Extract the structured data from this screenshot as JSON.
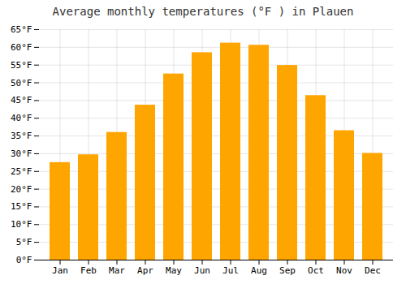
{
  "chart_data": {
    "type": "bar",
    "title": "Average monthly temperatures (°F ) in Plauen",
    "categories": [
      "Jan",
      "Feb",
      "Mar",
      "Apr",
      "May",
      "Jun",
      "Jul",
      "Aug",
      "Sep",
      "Oct",
      "Nov",
      "Dec"
    ],
    "values": [
      27.5,
      29.7,
      36.0,
      43.7,
      52.5,
      58.5,
      61.2,
      60.6,
      54.9,
      46.4,
      36.5,
      30.1
    ],
    "color": "#FFA500",
    "ylim": [
      0,
      65
    ],
    "yticks": [
      {
        "value": 0,
        "label": "0°F"
      },
      {
        "value": 5,
        "label": "5°F"
      },
      {
        "value": 10,
        "label": "10°F"
      },
      {
        "value": 15,
        "label": "15°F"
      },
      {
        "value": 20,
        "label": "20°F"
      },
      {
        "value": 25,
        "label": "25°F"
      },
      {
        "value": 30,
        "label": "30°F"
      },
      {
        "value": 35,
        "label": "35°F"
      },
      {
        "value": 40,
        "label": "40°F"
      },
      {
        "value": 45,
        "label": "45°F"
      },
      {
        "value": 50,
        "label": "50°F"
      },
      {
        "value": 55,
        "label": "55°F"
      },
      {
        "value": 60,
        "label": "60°F"
      },
      {
        "value": 65,
        "label": "65°F"
      }
    ],
    "grid": true
  }
}
